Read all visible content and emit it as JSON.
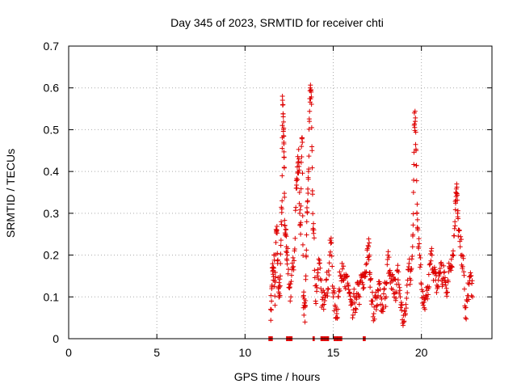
{
  "chart_data": {
    "type": "scatter",
    "title": "Day 345 of 2023, SRMTID for receiver chti",
    "xlabel": "GPS time / hours",
    "ylabel": "SRMTID / TECUs",
    "xlim": [
      0,
      24
    ],
    "ylim": [
      0,
      0.7
    ],
    "xticks": [
      0,
      5,
      10,
      15,
      20
    ],
    "yticks": [
      0,
      0.1,
      0.2,
      0.3,
      0.4,
      0.5,
      0.6,
      0.7
    ],
    "xtick_labels": [
      "0",
      "5",
      "10",
      "15",
      "20"
    ],
    "ytick_labels": [
      "0",
      "0.1",
      "0.2",
      "0.3",
      "0.4",
      "0.5",
      "0.6",
      "0.7"
    ],
    "grid": true,
    "marker": "+",
    "series_color": "#dd0000",
    "series": [
      {
        "name": "SRMTID",
        "points": [
          [
            11.45,
            0.07
          ],
          [
            11.5,
            0.09
          ],
          [
            11.55,
            0.17
          ],
          [
            11.6,
            0.14
          ],
          [
            11.65,
            0.2
          ],
          [
            11.7,
            0.08
          ],
          [
            11.75,
            0.23
          ],
          [
            11.8,
            0.26
          ],
          [
            11.85,
            0.18
          ],
          [
            11.9,
            0.12
          ],
          [
            11.95,
            0.1
          ],
          [
            12.0,
            0.15
          ],
          [
            12.05,
            0.28
          ],
          [
            12.1,
            0.33
          ],
          [
            12.12,
            0.58
          ],
          [
            12.15,
            0.56
          ],
          [
            12.18,
            0.5
          ],
          [
            12.2,
            0.47
          ],
          [
            12.22,
            0.41
          ],
          [
            12.25,
            0.27
          ],
          [
            12.3,
            0.25
          ],
          [
            12.35,
            0.22
          ],
          [
            12.4,
            0.2
          ],
          [
            12.5,
            0.13
          ],
          [
            12.6,
            0.1
          ],
          [
            12.7,
            0.17
          ],
          [
            12.8,
            0.21
          ],
          [
            12.9,
            0.36
          ],
          [
            12.95,
            0.38
          ],
          [
            13.0,
            0.42
          ],
          [
            13.05,
            0.43
          ],
          [
            13.1,
            0.3
          ],
          [
            13.15,
            0.25
          ],
          [
            13.2,
            0.46
          ],
          [
            13.25,
            0.47
          ],
          [
            13.3,
            0.1
          ],
          [
            13.35,
            0.08
          ],
          [
            13.4,
            0.04
          ],
          [
            13.45,
            0.15
          ],
          [
            13.5,
            0.28
          ],
          [
            13.55,
            0.33
          ],
          [
            13.6,
            0.4
          ],
          [
            13.65,
            0.52
          ],
          [
            13.7,
            0.6
          ],
          [
            13.75,
            0.59
          ],
          [
            13.8,
            0.45
          ],
          [
            13.85,
            0.26
          ],
          [
            13.9,
            0.26
          ],
          [
            14.0,
            0.09
          ],
          [
            14.1,
            0.15
          ],
          [
            14.2,
            0.18
          ],
          [
            14.3,
            0.12
          ],
          [
            14.4,
            0.08
          ],
          [
            14.5,
            0.11
          ],
          [
            14.6,
            0.14
          ],
          [
            14.7,
            0.12
          ],
          [
            14.8,
            0.2
          ],
          [
            14.9,
            0.23
          ],
          [
            15.0,
            0.1
          ],
          [
            15.1,
            0.08
          ],
          [
            15.2,
            0.06
          ],
          [
            15.3,
            0.1
          ],
          [
            15.4,
            0.15
          ],
          [
            15.5,
            0.18
          ],
          [
            15.6,
            0.14
          ],
          [
            15.7,
            0.12
          ],
          [
            15.8,
            0.15
          ],
          [
            15.9,
            0.11
          ],
          [
            16.0,
            0.08
          ],
          [
            16.1,
            0.05
          ],
          [
            16.2,
            0.1
          ],
          [
            16.3,
            0.07
          ],
          [
            16.4,
            0.13
          ],
          [
            16.5,
            0.1
          ],
          [
            16.6,
            0.15
          ],
          [
            16.7,
            0.12
          ],
          [
            16.8,
            0.16
          ],
          [
            16.9,
            0.18
          ],
          [
            17.0,
            0.22
          ],
          [
            17.05,
            0.2
          ],
          [
            17.1,
            0.14
          ],
          [
            17.2,
            0.09
          ],
          [
            17.3,
            0.06
          ],
          [
            17.4,
            0.1
          ],
          [
            17.5,
            0.08
          ],
          [
            17.6,
            0.13
          ],
          [
            17.7,
            0.1
          ],
          [
            17.8,
            0.07
          ],
          [
            17.9,
            0.12
          ],
          [
            18.0,
            0.1
          ],
          [
            18.1,
            0.2
          ],
          [
            18.2,
            0.15
          ],
          [
            18.3,
            0.12
          ],
          [
            18.4,
            0.14
          ],
          [
            18.5,
            0.11
          ],
          [
            18.6,
            0.13
          ],
          [
            18.7,
            0.16
          ],
          [
            18.8,
            0.1
          ],
          [
            18.9,
            0.08
          ],
          [
            19.0,
            0.04
          ],
          [
            19.1,
            0.06
          ],
          [
            19.2,
            0.11
          ],
          [
            19.3,
            0.18
          ],
          [
            19.4,
            0.14
          ],
          [
            19.5,
            0.22
          ],
          [
            19.55,
            0.35
          ],
          [
            19.6,
            0.54
          ],
          [
            19.65,
            0.52
          ],
          [
            19.7,
            0.45
          ],
          [
            19.75,
            0.3
          ],
          [
            19.8,
            0.26
          ],
          [
            19.9,
            0.2
          ],
          [
            20.0,
            0.13
          ],
          [
            20.1,
            0.08
          ],
          [
            20.2,
            0.07
          ],
          [
            20.3,
            0.1
          ],
          [
            20.4,
            0.12
          ],
          [
            20.5,
            0.18
          ],
          [
            20.6,
            0.2
          ],
          [
            20.7,
            0.16
          ],
          [
            20.8,
            0.14
          ],
          [
            20.9,
            0.12
          ],
          [
            21.0,
            0.15
          ],
          [
            21.1,
            0.18
          ],
          [
            21.2,
            0.13
          ],
          [
            21.3,
            0.16
          ],
          [
            21.4,
            0.11
          ],
          [
            21.5,
            0.14
          ],
          [
            21.6,
            0.17
          ],
          [
            21.7,
            0.19
          ],
          [
            21.8,
            0.21
          ],
          [
            21.9,
            0.28
          ],
          [
            21.95,
            0.35
          ],
          [
            22.0,
            0.37
          ],
          [
            22.05,
            0.3
          ],
          [
            22.1,
            0.26
          ],
          [
            22.2,
            0.22
          ],
          [
            22.3,
            0.2
          ],
          [
            22.4,
            0.16
          ],
          [
            22.5,
            0.05
          ],
          [
            22.6,
            0.09
          ],
          [
            22.7,
            0.13
          ],
          [
            22.8,
            0.15
          ],
          [
            22.9,
            0.1
          ]
        ],
        "zero_runs": [
          [
            11.35,
            11.55
          ],
          [
            12.35,
            12.7
          ],
          [
            13.85,
            13.95
          ],
          [
            14.3,
            14.75
          ],
          [
            15.05,
            15.5
          ],
          [
            16.7,
            16.85
          ]
        ]
      }
    ]
  }
}
